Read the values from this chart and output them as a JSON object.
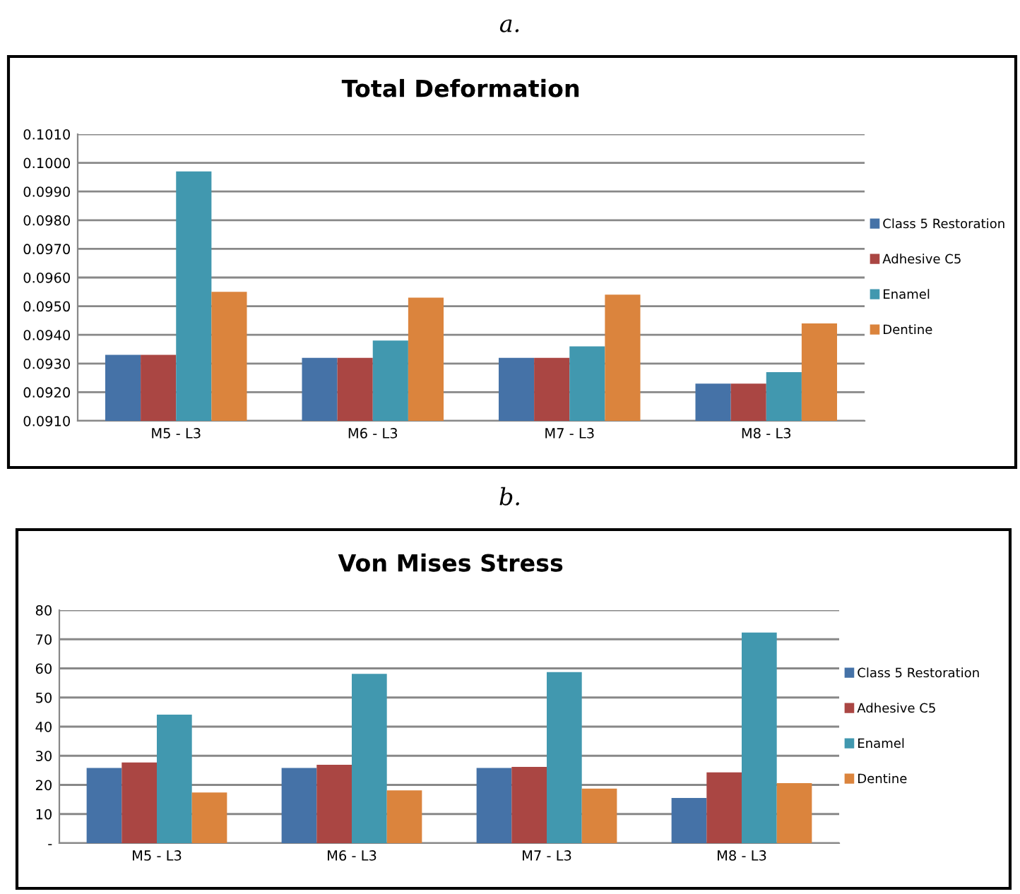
{
  "chart_data": [
    {
      "type": "bar",
      "title": "Total Deformation",
      "annotations": [
        "a."
      ],
      "categories": [
        "M5 - L3",
        "M6 - L3",
        "M7 - L3",
        "M8 - L3"
      ],
      "series": [
        {
          "name": "Class 5 Restoration",
          "color": "#4572a7",
          "values": [
            0.0933,
            0.0932,
            0.0932,
            0.0923
          ]
        },
        {
          "name": "Adhesive C5",
          "color": "#aa4643",
          "values": [
            0.0933,
            0.0932,
            0.0932,
            0.0923
          ]
        },
        {
          "name": "Enamel",
          "color": "#4198af",
          "values": [
            0.0997,
            0.0938,
            0.0936,
            0.0927
          ]
        },
        {
          "name": "Dentine",
          "color": "#db843d",
          "values": [
            0.0955,
            0.0953,
            0.0954,
            0.0944
          ]
        }
      ],
      "ylim": [
        0.091,
        0.101
      ],
      "yticks": [
        {
          "value": 0.091,
          "label": "0.0910"
        },
        {
          "value": 0.092,
          "label": "0.0920"
        },
        {
          "value": 0.093,
          "label": "0.0930"
        },
        {
          "value": 0.094,
          "label": "0.0940"
        },
        {
          "value": 0.095,
          "label": "0.0950"
        },
        {
          "value": 0.096,
          "label": "0.0960"
        },
        {
          "value": 0.097,
          "label": "0.0970"
        },
        {
          "value": 0.098,
          "label": "0.0980"
        },
        {
          "value": 0.099,
          "label": "0.0990"
        },
        {
          "value": 0.1,
          "label": "0.1000"
        },
        {
          "value": 0.101,
          "label": "0.1010"
        }
      ],
      "grid": "y",
      "legend": "right"
    },
    {
      "type": "bar",
      "title": "Von Mises Stress",
      "annotations": [
        "b."
      ],
      "categories": [
        "M5 - L3",
        "M6 - L3",
        "M7 - L3",
        "M8 - L3"
      ],
      "series": [
        {
          "name": "Class 5 Restoration",
          "color": "#4572a7",
          "values": [
            25.8,
            25.8,
            25.8,
            15.5
          ]
        },
        {
          "name": "Adhesive C5",
          "color": "#aa4643",
          "values": [
            27.7,
            26.9,
            26.2,
            24.3
          ]
        },
        {
          "name": "Enamel",
          "color": "#4198af",
          "values": [
            44.1,
            58.1,
            58.7,
            72.3
          ]
        },
        {
          "name": "Dentine",
          "color": "#db843d",
          "values": [
            17.4,
            18.1,
            18.7,
            20.6
          ]
        }
      ],
      "ylim": [
        0,
        80
      ],
      "yticks": [
        {
          "value": 0,
          "label": "-"
        },
        10,
        20,
        30,
        40,
        50,
        60,
        70,
        80
      ],
      "grid": "y",
      "legend": "right"
    }
  ]
}
